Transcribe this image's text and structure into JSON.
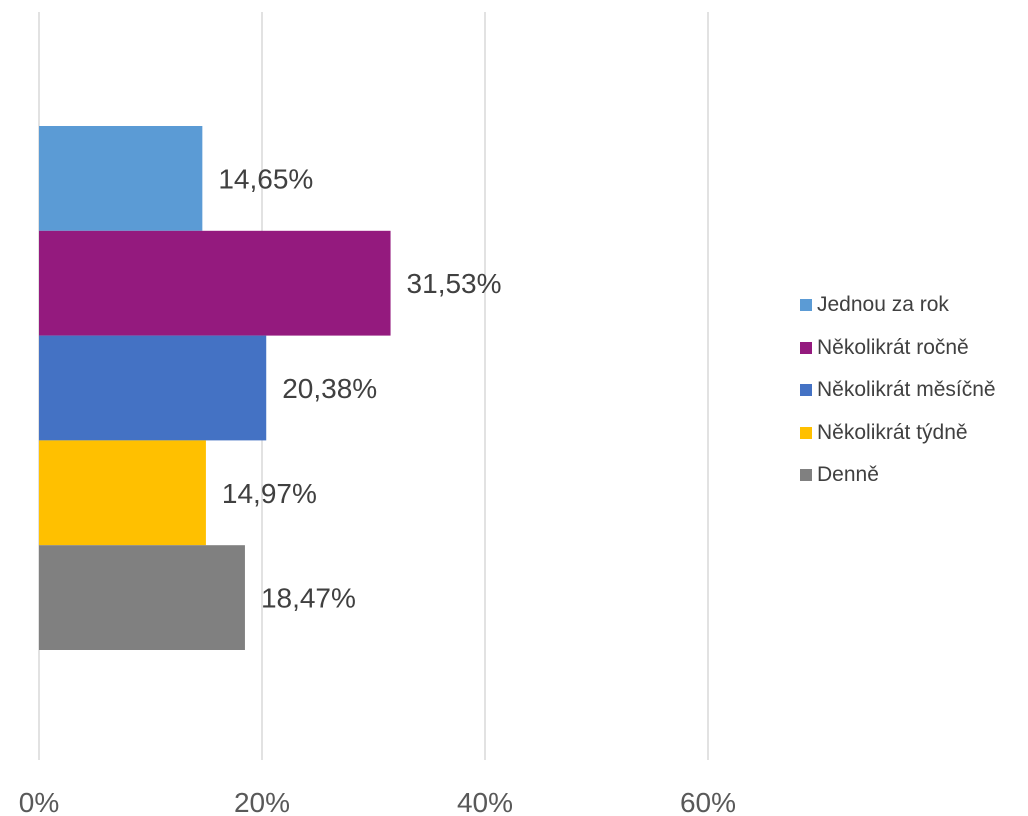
{
  "chart_data": {
    "type": "bar",
    "orientation": "horizontal",
    "title": "",
    "xlabel": "",
    "ylabel": "",
    "xlim": [
      0,
      0.8
    ],
    "ticks": [
      {
        "value": 0,
        "label": "0%"
      },
      {
        "value": 0.2,
        "label": "20%"
      },
      {
        "value": 0.4,
        "label": "40%"
      },
      {
        "value": 0.6,
        "label": "60%"
      }
    ],
    "grid": true,
    "legend_position": "right",
    "series": [
      {
        "name": "Jednou za rok",
        "value": 0.1465,
        "label": "14,65%",
        "color": "#5B9BD5"
      },
      {
        "name": "Několikrát ročně",
        "value": 0.3153,
        "label": "31,53%",
        "color": "#941A7E"
      },
      {
        "name": "Několikrát měsíčně",
        "value": 0.2038,
        "label": "20,38%",
        "color": "#4472C4"
      },
      {
        "name": "Několikrát týdně",
        "value": 0.1497,
        "label": "14,97%",
        "color": "#FFC000"
      },
      {
        "name": "Denně",
        "value": 0.1847,
        "label": "18,47%",
        "color": "#808080"
      }
    ]
  }
}
